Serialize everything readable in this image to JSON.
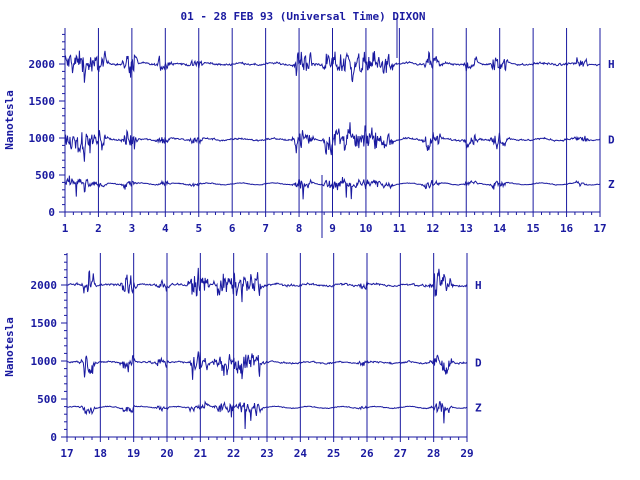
{
  "chart_data": [
    {
      "type": "line",
      "panel": "top",
      "title": "01 - 28 FEB 93 (Universal Time) DIXON",
      "ylabel": "Nanotesla",
      "xlabel": "",
      "xlim": [
        1,
        17
      ],
      "ylim": [
        0,
        2400
      ],
      "x_ticks": [
        "1",
        "2",
        "3",
        "4",
        "5",
        "6",
        "7",
        "8",
        "9",
        "10",
        "11",
        "12",
        "13",
        "14",
        "15",
        "16",
        "17"
      ],
      "y_ticks": [
        "0",
        "500",
        "1000",
        "1500",
        "2000"
      ],
      "grid": "vertical lines at each day",
      "series": [
        {
          "name": "H",
          "baseline": 2000
        },
        {
          "name": "D",
          "baseline": 980
        },
        {
          "name": "Z",
          "baseline": 380
        }
      ]
    },
    {
      "type": "line",
      "panel": "bottom",
      "ylabel": "Nanotesla",
      "xlabel": "",
      "xlim": [
        17,
        29
      ],
      "ylim": [
        0,
        2400
      ],
      "x_ticks": [
        "17",
        "18",
        "19",
        "20",
        "21",
        "22",
        "23",
        "24",
        "25",
        "26",
        "27",
        "28",
        "29"
      ],
      "y_ticks": [
        "0",
        "500",
        "1000",
        "1500",
        "2000"
      ],
      "grid": "vertical lines at each day",
      "series": [
        {
          "name": "H",
          "baseline": 2000
        },
        {
          "name": "D",
          "baseline": 980
        },
        {
          "name": "Z",
          "baseline": 390
        }
      ]
    }
  ],
  "colors": {
    "ink": "#1a1aa0",
    "background": "#ffffff"
  }
}
